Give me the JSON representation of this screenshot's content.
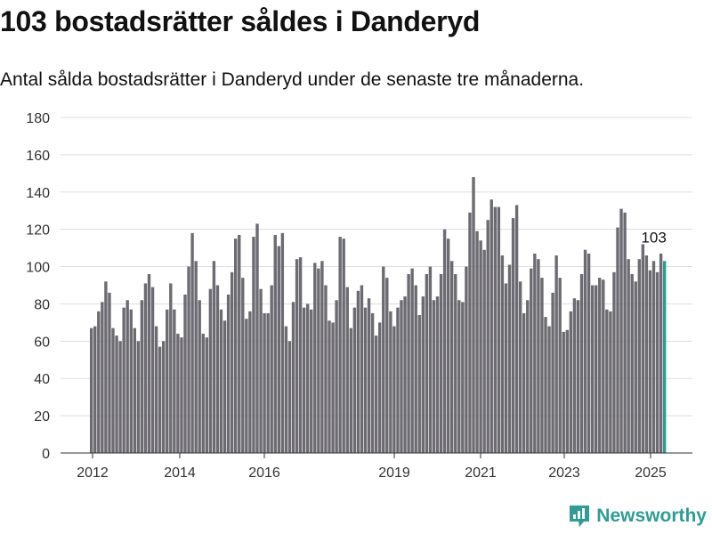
{
  "title": "103 bostadsrätter såldes i Danderyd",
  "subtitle": "Antal sålda bostadsrätter i Danderyd under de senaste tre månaderna.",
  "brand": "Newsworthy",
  "colors": {
    "bar": "#6d6b72",
    "highlight": "#2a9d8f",
    "grid": "#dddddd",
    "brand": "#2f9c95"
  },
  "chart_data": {
    "type": "bar",
    "ylim": [
      0,
      180
    ],
    "yticks": [
      0,
      20,
      40,
      60,
      80,
      100,
      120,
      140,
      160,
      180
    ],
    "xticks": [
      "2012",
      "2014",
      "2016",
      "2019",
      "2021",
      "2023",
      "2025"
    ],
    "grid": true,
    "annotation": "103",
    "highlight": "last",
    "values": [
      67,
      68,
      76,
      81,
      92,
      86,
      67,
      63,
      60,
      78,
      82,
      77,
      67,
      60,
      82,
      91,
      96,
      89,
      68,
      57,
      60,
      77,
      91,
      77,
      64,
      62,
      85,
      100,
      118,
      103,
      82,
      64,
      62,
      88,
      103,
      90,
      77,
      71,
      85,
      97,
      115,
      117,
      94,
      72,
      76,
      116,
      123,
      88,
      75,
      75,
      90,
      117,
      111,
      118,
      68,
      60,
      81,
      104,
      105,
      78,
      80,
      77,
      102,
      99,
      103,
      90,
      71,
      70,
      82,
      116,
      115,
      89,
      67,
      78,
      87,
      90,
      78,
      83,
      75,
      63,
      70,
      100,
      94,
      76,
      68,
      78,
      82,
      84,
      96,
      99,
      90,
      74,
      84,
      96,
      100,
      82,
      84,
      96,
      120,
      115,
      103,
      96,
      82,
      81,
      100,
      129,
      148,
      119,
      114,
      109,
      125,
      136,
      132,
      132,
      106,
      91,
      101,
      126,
      133,
      92,
      75,
      82,
      99,
      107,
      104,
      94,
      73,
      68,
      86,
      106,
      94,
      65,
      66,
      76,
      83,
      82,
      96,
      109,
      107,
      90,
      90,
      94,
      93,
      77,
      76,
      97,
      121,
      131,
      129,
      104,
      96,
      92,
      104,
      112,
      106,
      98,
      103,
      97,
      107,
      103
    ]
  }
}
